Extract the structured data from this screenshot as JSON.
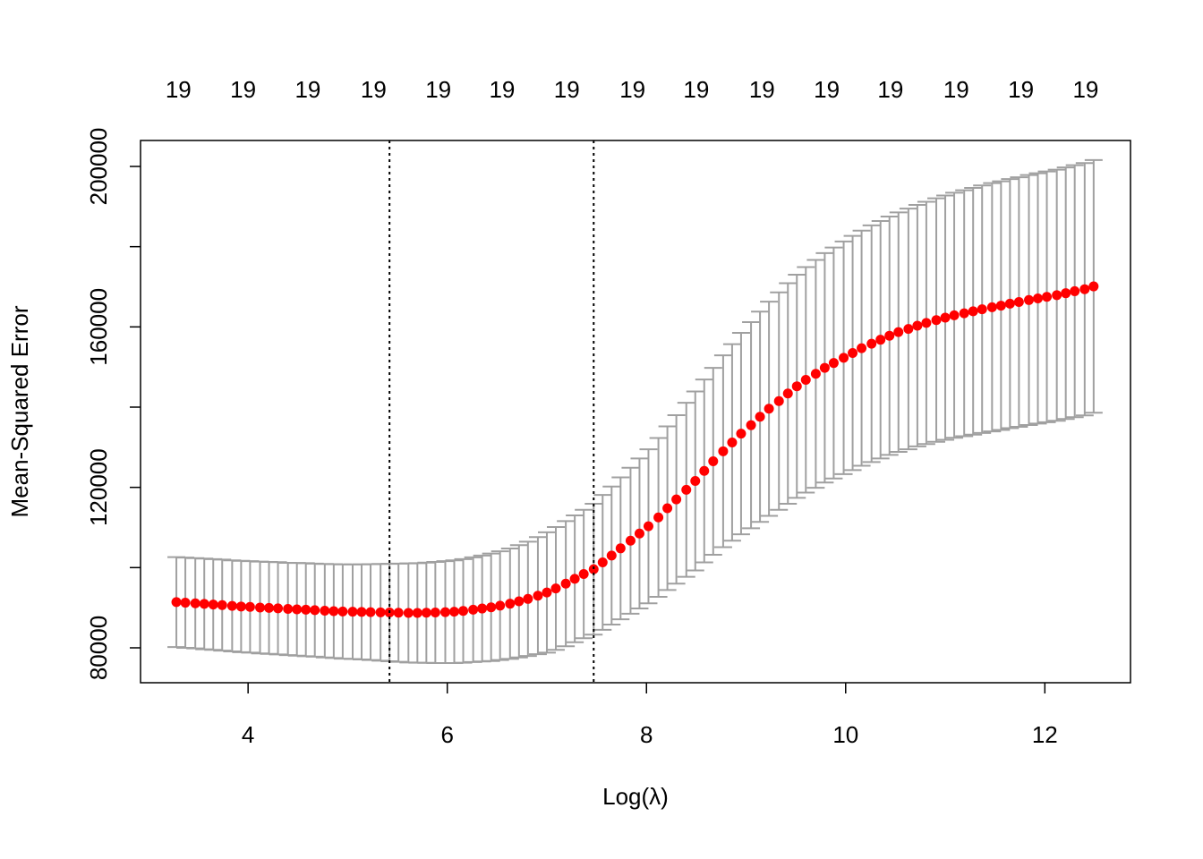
{
  "chart_data": {
    "type": "errorbar",
    "xlabel": "Log(λ)",
    "ylabel": "Mean-Squared Error",
    "xlim": [
      2.92,
      12.86
    ],
    "ylim": [
      71300,
      206470
    ],
    "xticks": [
      4,
      6,
      8,
      10,
      12
    ],
    "yticks": [
      80000,
      {
        "value": 100000,
        "label": null
      },
      120000,
      {
        "value": 140000,
        "label": null
      },
      160000,
      {
        "value": 180000,
        "label": null
      },
      200000
    ],
    "top_axis": {
      "x": [
        3.3,
        3.95,
        4.6,
        5.26,
        5.91,
        6.55,
        7.2,
        7.86,
        8.5,
        9.16,
        9.81,
        10.45,
        11.11,
        11.76,
        12.41
      ],
      "counts": [
        19,
        19,
        19,
        19,
        19,
        19,
        19,
        19,
        19,
        19,
        19,
        19,
        19,
        19,
        19
      ]
    },
    "vlines": [
      5.42,
      7.47
    ],
    "point_color": "#ff0000",
    "bar_color": "#a0a0a0",
    "x": [
      3.28,
      3.37,
      3.47,
      3.56,
      3.65,
      3.74,
      3.84,
      3.93,
      4.02,
      4.12,
      4.21,
      4.3,
      4.4,
      4.49,
      4.58,
      4.67,
      4.77,
      4.86,
      4.95,
      5.05,
      5.14,
      5.23,
      5.33,
      5.42,
      5.51,
      5.61,
      5.7,
      5.79,
      5.88,
      5.98,
      6.07,
      6.16,
      6.26,
      6.35,
      6.44,
      6.53,
      6.63,
      6.72,
      6.81,
      6.91,
      7.0,
      7.09,
      7.19,
      7.28,
      7.37,
      7.47,
      7.56,
      7.65,
      7.74,
      7.84,
      7.93,
      8.02,
      8.12,
      8.21,
      8.3,
      8.4,
      8.49,
      8.58,
      8.67,
      8.77,
      8.86,
      8.95,
      9.05,
      9.14,
      9.23,
      9.33,
      9.42,
      9.51,
      9.6,
      9.7,
      9.79,
      9.88,
      9.98,
      10.07,
      10.16,
      10.26,
      10.35,
      10.44,
      10.53,
      10.63,
      10.72,
      10.81,
      10.91,
      11.0,
      11.09,
      11.19,
      11.28,
      11.37,
      11.47,
      11.56,
      11.65,
      11.74,
      11.84,
      11.93,
      12.02,
      12.12,
      12.21,
      12.3,
      12.4,
      12.49
    ],
    "values": [
      91400,
      91250,
      91100,
      90950,
      90800,
      90650,
      90450,
      90300,
      90200,
      90050,
      89950,
      89850,
      89700,
      89600,
      89500,
      89400,
      89250,
      89150,
      89050,
      89000,
      88950,
      88900,
      88850,
      88800,
      88750,
      88700,
      88700,
      88750,
      88800,
      88900,
      89000,
      89200,
      89500,
      89800,
      90100,
      90500,
      91000,
      91600,
      92200,
      93000,
      93800,
      94800,
      96000,
      97200,
      98400,
      99600,
      101300,
      103000,
      104800,
      106700,
      108500,
      110300,
      112500,
      114800,
      117000,
      119400,
      121600,
      124100,
      126500,
      129000,
      131200,
      133400,
      135500,
      137600,
      139600,
      141500,
      143400,
      145200,
      146800,
      148300,
      149800,
      151000,
      152300,
      153500,
      154700,
      155800,
      156800,
      157800,
      158700,
      159500,
      160300,
      161000,
      161700,
      162300,
      162900,
      163400,
      163900,
      164400,
      164900,
      165300,
      165800,
      166200,
      166700,
      167100,
      167500,
      167900,
      168400,
      168900,
      169400,
      170100
    ],
    "errors": [
      11200,
      11250,
      11250,
      11300,
      11300,
      11350,
      11350,
      11400,
      11400,
      11450,
      11450,
      11500,
      11500,
      11550,
      11600,
      11600,
      11650,
      11700,
      11750,
      11800,
      11850,
      11950,
      12050,
      12150,
      12250,
      12350,
      12400,
      12500,
      12600,
      12700,
      12800,
      12900,
      13050,
      13200,
      13400,
      13550,
      13750,
      14000,
      14250,
      14600,
      15000,
      15300,
      15600,
      15800,
      16000,
      16300,
      16800,
      17200,
      17700,
      18200,
      18700,
      19200,
      19800,
      20400,
      21000,
      21700,
      22300,
      22800,
      23300,
      23900,
      24500,
      25100,
      25700,
      26200,
      26700,
      27100,
      27500,
      27800,
      28100,
      28400,
      28600,
      28800,
      29000,
      29200,
      29300,
      29500,
      29600,
      29700,
      29850,
      30000,
      30100,
      30200,
      30350,
      30450,
      30550,
      30650,
      30750,
      30850,
      30950,
      31000,
      31050,
      31100,
      31150,
      31200,
      31250,
      31300,
      31350,
      31400,
      31450,
      31500
    ]
  }
}
